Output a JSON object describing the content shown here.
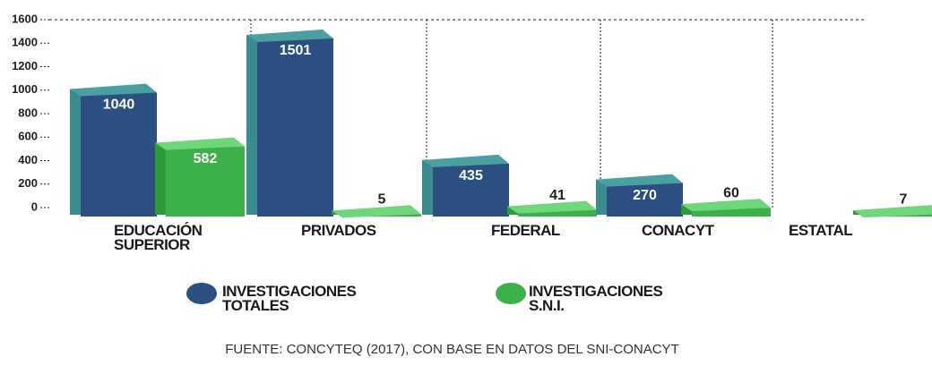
{
  "chart_data": {
    "type": "bar",
    "categories": [
      "EDUCACIÓN SUPERIOR",
      "PRIVADOS",
      "FEDERAL",
      "CONACYT",
      "ESTATAL"
    ],
    "series": [
      {
        "name": "INVESTIGACIONES TOTALES",
        "color": "#2b4f80",
        "values": [
          1040,
          1501,
          435,
          270,
          null
        ]
      },
      {
        "name": "INVESTIGACIONES S.N.I.",
        "color": "#3cb04a",
        "values": [
          582,
          5,
          41,
          60,
          7
        ]
      }
    ],
    "ylim": [
      0,
      1600
    ],
    "yticks": [
      0,
      200,
      400,
      600,
      800,
      1000,
      1200,
      1400,
      1600
    ],
    "source": "FUENTE: CONCYTEQ (2017), CON BASE EN DATOS DEL SNI-CONACYT"
  }
}
